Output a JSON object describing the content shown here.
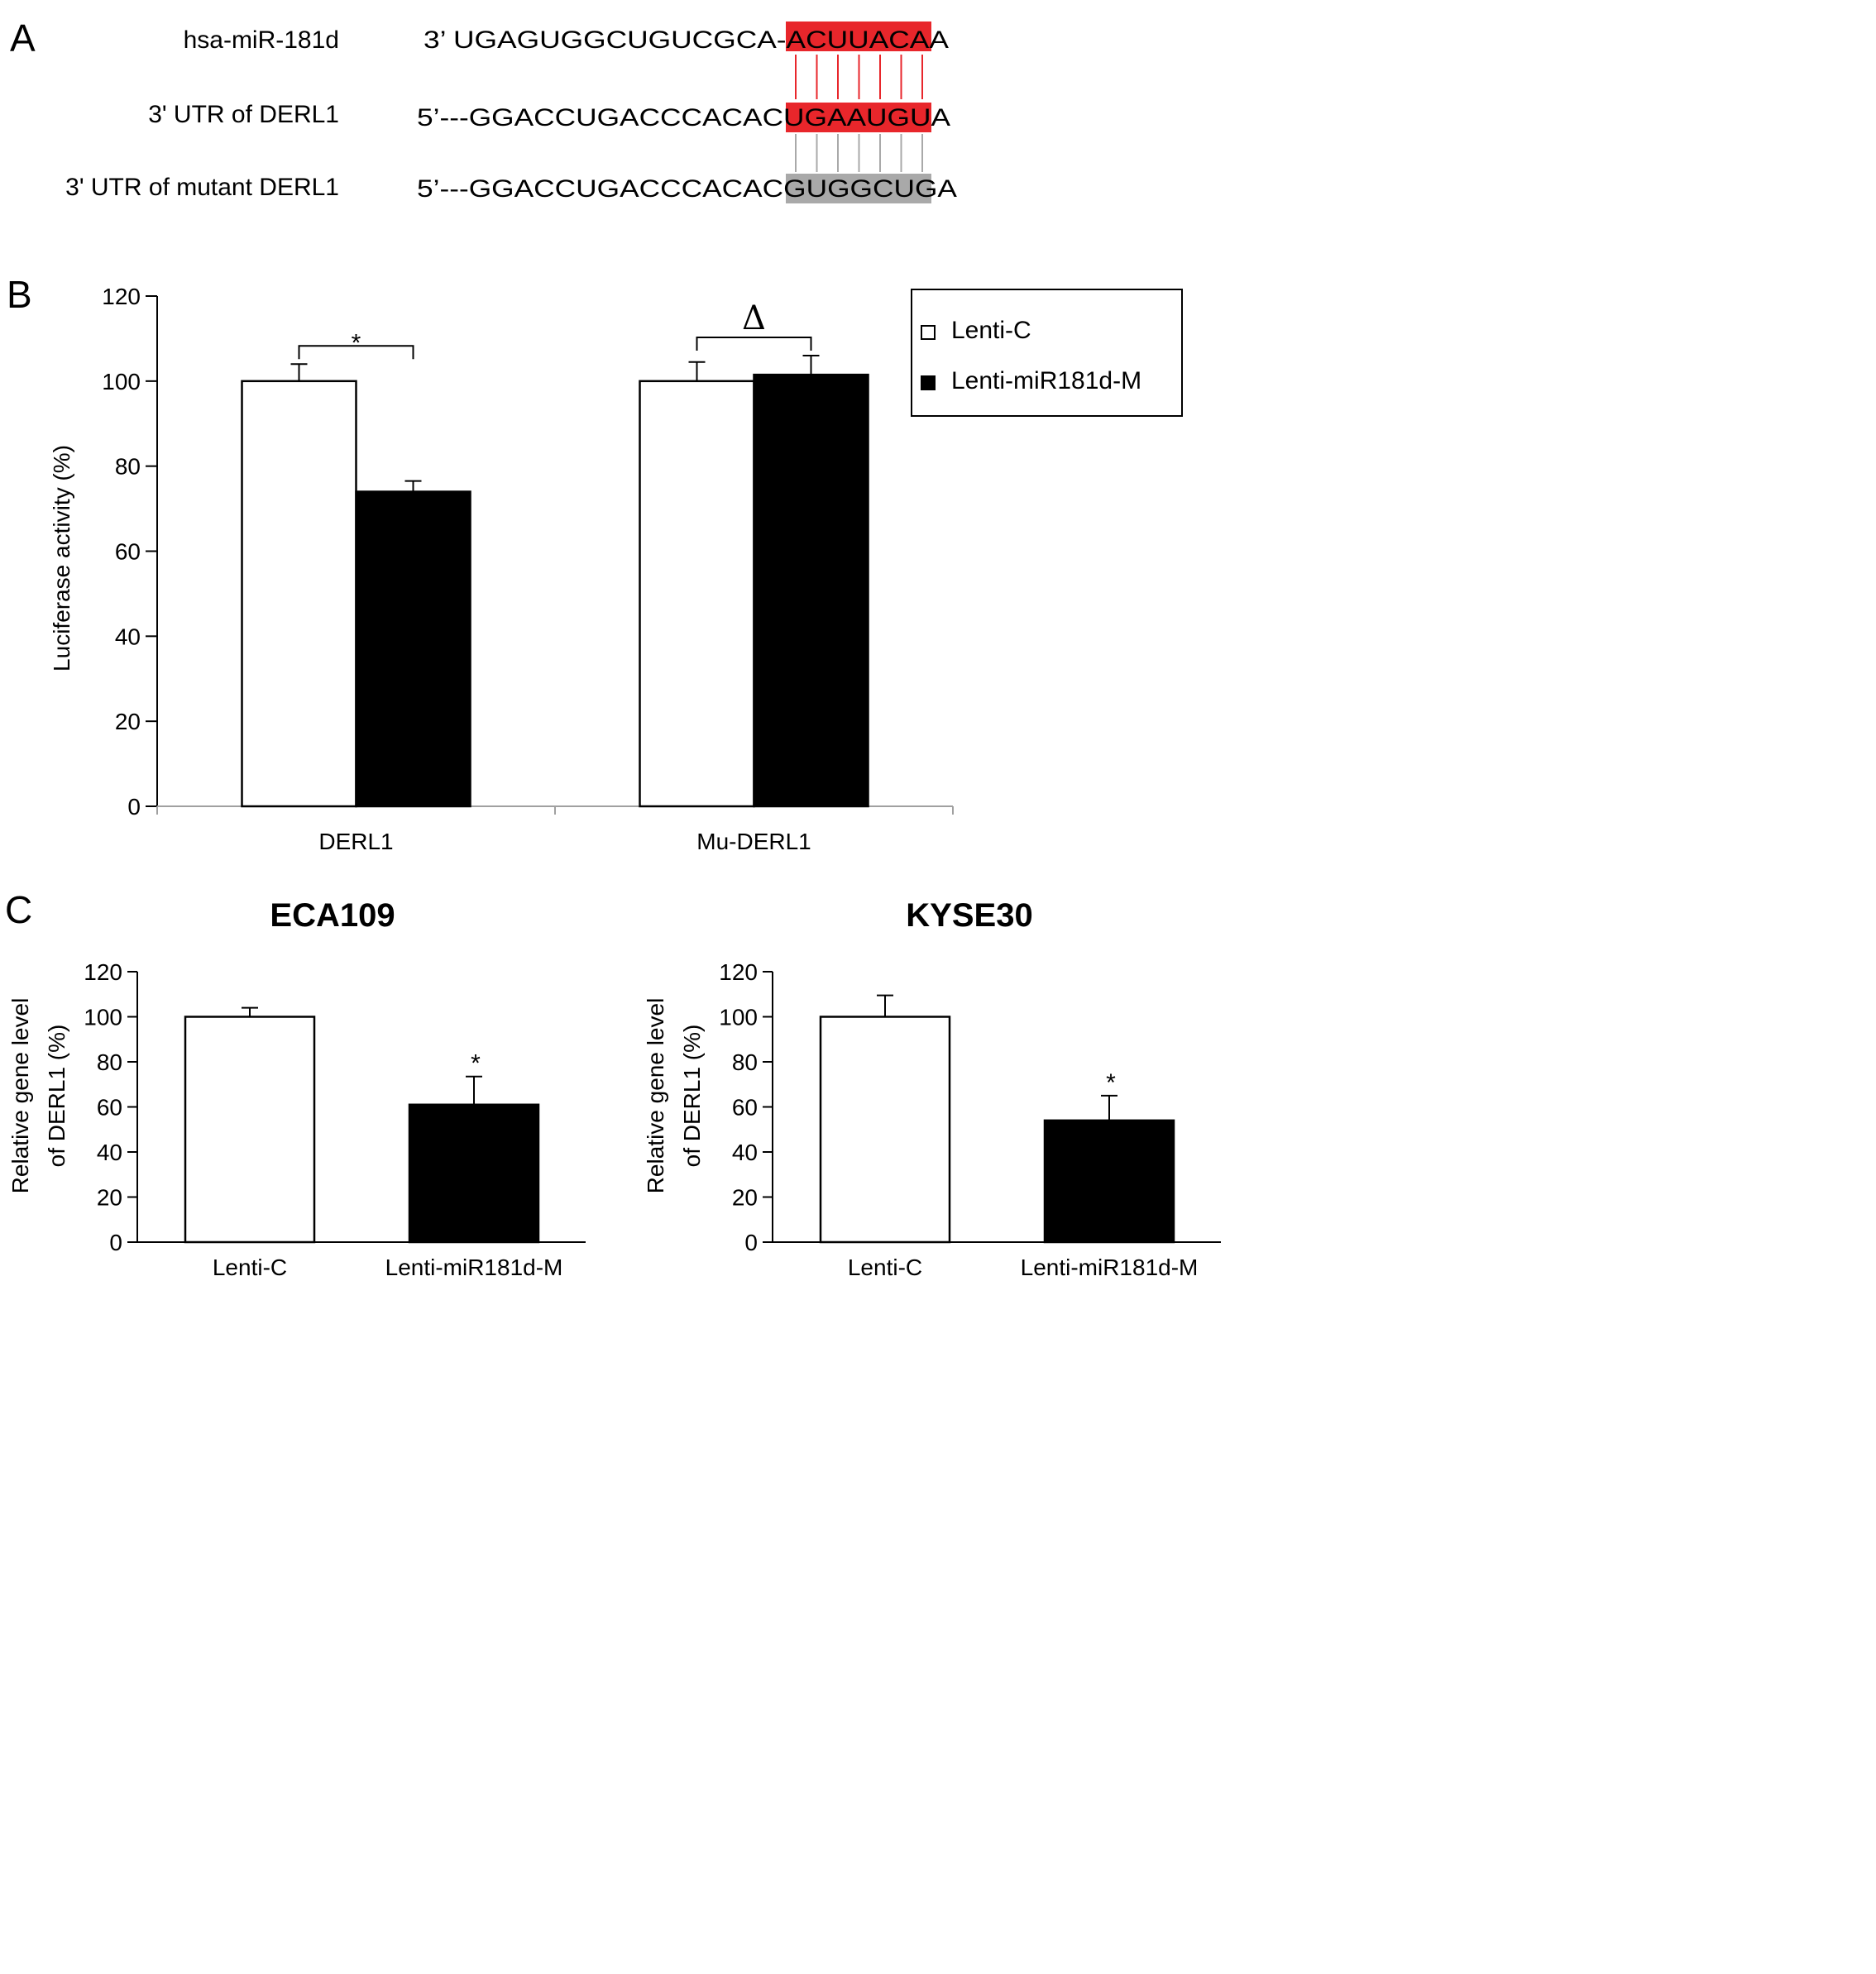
{
  "panels": {
    "A": {
      "letter": "A",
      "rows": [
        {
          "label": "hsa-miR-181d",
          "prefix": "3’ UGAGUGGCUGUCGCA-",
          "site": "ACUUACA",
          "suffix": "A",
          "highlight": "#e8262b"
        },
        {
          "label": "3' UTR of DERL1",
          "prefix": "5’---GGACCUGACCCACAC",
          "site": "UGAAUGU",
          "suffix": "A",
          "highlight": "#e8262b"
        },
        {
          "label": "3' UTR of mutant DERL1",
          "prefix": "5’---GGACCUGACCCACAC",
          "site": "GUGGCUG",
          "suffix": "A",
          "highlight": "#a9a9a9"
        }
      ],
      "pair_line_colors": [
        "#e8262b",
        "#a9a9a9"
      ]
    },
    "B": {
      "letter": "B"
    },
    "C": {
      "letter": "C"
    }
  },
  "chart_data": [
    {
      "id": "B",
      "type": "bar",
      "title": "",
      "xlabel": "",
      "ylabel": "Luciferase activity (%)",
      "ylim": [
        0,
        120
      ],
      "yticks": [
        0,
        20,
        40,
        60,
        80,
        100,
        120
      ],
      "categories": [
        "DERL1",
        "Mu-DERL1"
      ],
      "series": [
        {
          "name": "Lenti-C",
          "values": [
            100,
            100
          ],
          "errors": [
            4,
            4.5
          ],
          "color": "#ffffff"
        },
        {
          "name": "Lenti-miR181d-M",
          "values": [
            74,
            101.5
          ],
          "errors": [
            2.5,
            4.5
          ],
          "color": "#000000"
        }
      ],
      "annotations": [
        {
          "category": "DERL1",
          "text": "*"
        },
        {
          "category": "Mu-DERL1",
          "text": "Δ"
        }
      ],
      "legend": {
        "position": "top-right",
        "entries": [
          "Lenti-C",
          "Lenti-miR181d-M"
        ]
      }
    },
    {
      "id": "C1",
      "type": "bar",
      "title": "ECA109",
      "xlabel": "",
      "ylabel": [
        "Relative gene level",
        "of DERL1 (%)"
      ],
      "ylim": [
        0,
        120
      ],
      "yticks": [
        0,
        20,
        40,
        60,
        80,
        100,
        120
      ],
      "categories": [
        "Lenti-C",
        "Lenti-miR181d-M"
      ],
      "values": [
        100,
        61
      ],
      "errors": [
        4,
        12.5
      ],
      "colors": [
        "#ffffff",
        "#000000"
      ],
      "annotations": [
        {
          "category": "Lenti-miR181d-M",
          "text": "*"
        }
      ]
    },
    {
      "id": "C2",
      "type": "bar",
      "title": "KYSE30",
      "xlabel": "",
      "ylabel": [
        "Relative gene level",
        "of DERL1 (%)"
      ],
      "ylim": [
        0,
        120
      ],
      "yticks": [
        0,
        20,
        40,
        60,
        80,
        100,
        120
      ],
      "categories": [
        "Lenti-C",
        "Lenti-miR181d-M"
      ],
      "values": [
        100,
        54
      ],
      "errors": [
        9.5,
        11
      ],
      "colors": [
        "#ffffff",
        "#000000"
      ],
      "annotations": [
        {
          "category": "Lenti-miR181d-M",
          "text": "*"
        }
      ]
    }
  ]
}
